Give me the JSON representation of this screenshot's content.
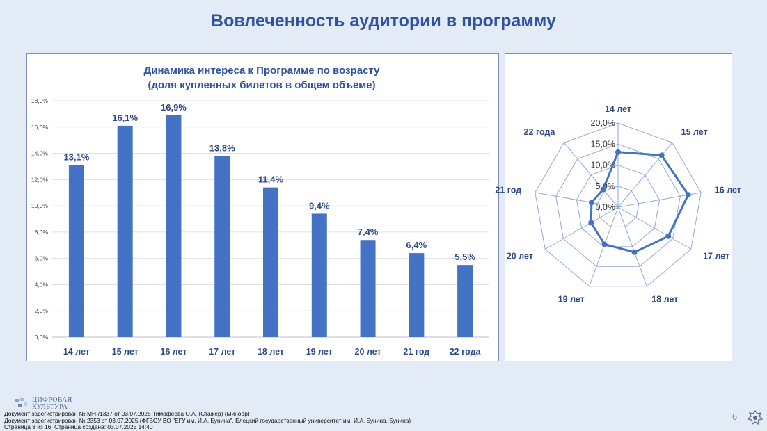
{
  "page": {
    "title": "Вовлеченность аудитории в программу",
    "page_number": "6",
    "logo_text": "ЦИФРОВАЯ КУЛЬТУРА"
  },
  "footer": {
    "lines": [
      "Документ зарегистрирован № МН-/1337 от 03.07.2025 Тимофеева О.А. (Стажер) (Минобр)",
      "Документ зарегистрирован № 2353 от 03.07.2025  (ФГБОУ ВО \"ЕГУ им. И.А. Бунина\", Елецкий государственный университет им. И.А. Бунина, Бунина)",
      "Страница 8 из 16. Страница создана: 03.07.2025 14:40"
    ]
  },
  "chart_data": [
    {
      "type": "bar",
      "title": "Динамика интереса к Программе по возрасту",
      "subtitle": "(доля купленных билетов в общем объеме)",
      "categories": [
        "14 лет",
        "15 лет",
        "16 лет",
        "17 лет",
        "18 лет",
        "19 лет",
        "20 лет",
        "21 год",
        "22 года"
      ],
      "values": [
        13.1,
        16.1,
        16.9,
        13.8,
        11.4,
        9.4,
        7.4,
        6.4,
        5.5
      ],
      "data_labels": [
        "13,1%",
        "16,1%",
        "16,9%",
        "13,8%",
        "11,4%",
        "9,4%",
        "7,4%",
        "6,4%",
        "5,5%"
      ],
      "ylim": [
        0,
        18
      ],
      "y_ticks": [
        "0,0%",
        "2,0%",
        "4,0%",
        "6,0%",
        "8,0%",
        "10,0%",
        "12,0%",
        "14,0%",
        "16,0%",
        "18,0%"
      ],
      "grid": true,
      "color": "#4472c4"
    },
    {
      "type": "radar",
      "categories": [
        "14 лет",
        "15 лет",
        "16 лет",
        "17 лет",
        "18 лет",
        "19 лет",
        "20 лет",
        "21 год",
        "22 года"
      ],
      "values": [
        13.1,
        16.1,
        16.9,
        13.8,
        11.4,
        9.4,
        7.4,
        6.4,
        5.5
      ],
      "rlim": [
        0,
        20
      ],
      "r_ticks": [
        "0,0%",
        "5,0%",
        "10,0%",
        "15,0%",
        "20,0%"
      ],
      "color": "#4472c4",
      "grid_color": "#8faadc"
    }
  ]
}
